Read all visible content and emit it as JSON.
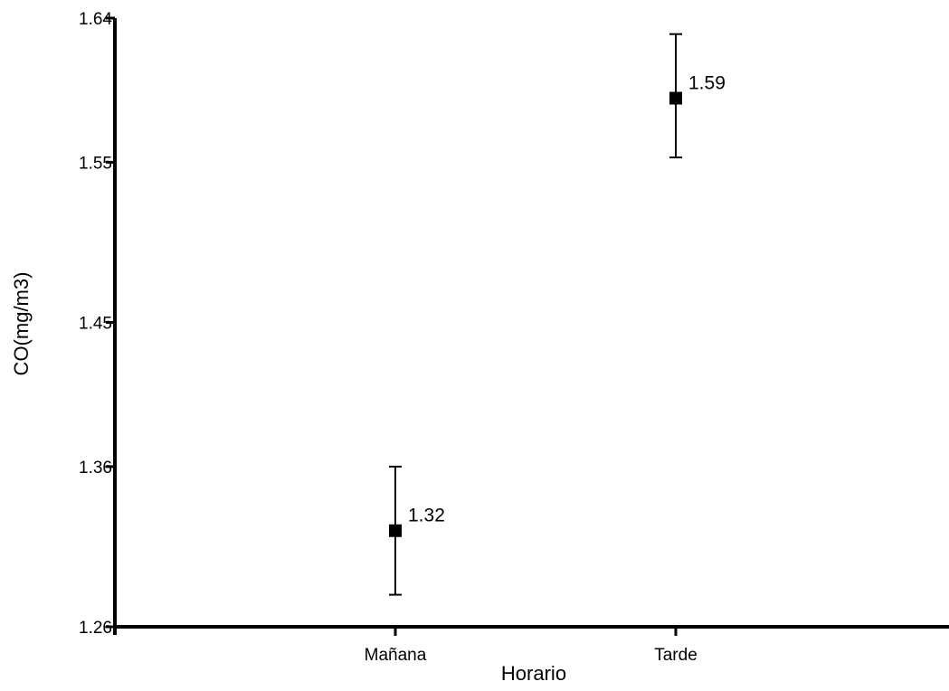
{
  "chart_data": {
    "type": "scatter",
    "xlabel": "Horario",
    "ylabel": "CO(mg/m3)",
    "categories": [
      "Mañana",
      "Tarde"
    ],
    "series": [
      {
        "values": [
          1.32,
          1.59
        ],
        "error_low": [
          1.28,
          1.553
        ],
        "error_high": [
          1.36,
          1.63
        ],
        "labels": [
          "1.32",
          "1.59"
        ]
      }
    ],
    "y_ticks": [
      1.26,
      1.36,
      1.45,
      1.55,
      1.64
    ],
    "y_tick_labels": [
      "1.26",
      "1.36",
      "1.45",
      "1.55",
      "1.64"
    ],
    "ylim": [
      1.26,
      1.64
    ],
    "grid": false,
    "marker": "square",
    "colors": {
      "axis": "#000000",
      "marker": "#000000"
    }
  }
}
